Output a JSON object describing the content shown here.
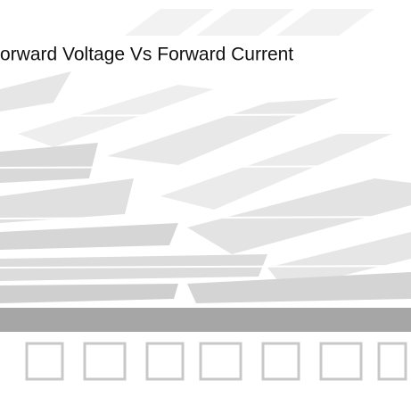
{
  "title": "orward Voltage Vs Forward Current"
}
